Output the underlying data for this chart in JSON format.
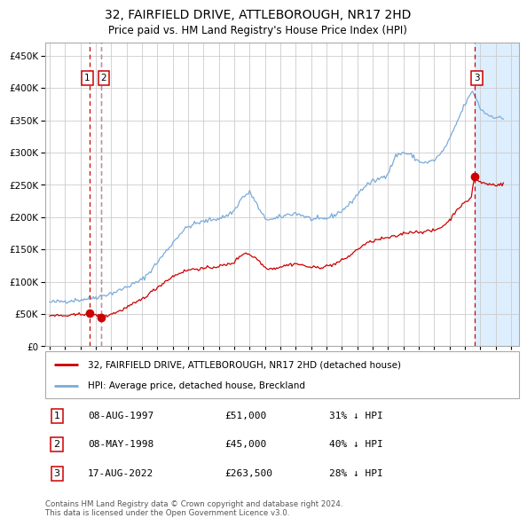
{
  "title": "32, FAIRFIELD DRIVE, ATTLEBOROUGH, NR17 2HD",
  "subtitle": "Price paid vs. HM Land Registry's House Price Index (HPI)",
  "legend_label_red": "32, FAIRFIELD DRIVE, ATTLEBOROUGH, NR17 2HD (detached house)",
  "legend_label_blue": "HPI: Average price, detached house, Breckland",
  "footer": "Contains HM Land Registry data © Crown copyright and database right 2024.\nThis data is licensed under the Open Government Licence v3.0.",
  "transactions": [
    {
      "num": "1",
      "date": "08-AUG-1997",
      "price": "£51,000",
      "pct": "31% ↓ HPI",
      "date_val": 1997.608,
      "price_val": 51000
    },
    {
      "num": "2",
      "date": "08-MAY-1998",
      "price": "£45,000",
      "pct": "40% ↓ HPI",
      "date_val": 1998.356,
      "price_val": 45000
    },
    {
      "num": "3",
      "date": "17-AUG-2022",
      "price": "£263,500",
      "pct": "28% ↓ HPI",
      "date_val": 2022.624,
      "price_val": 263500
    }
  ],
  "red_line_color": "#cc0000",
  "blue_line_color": "#7aabdb",
  "background_color": "#ffffff",
  "plot_bg_color": "#ffffff",
  "grid_color": "#cccccc",
  "highlight_color": "#ddeeff",
  "ylim": [
    0,
    470000
  ],
  "yticks": [
    0,
    50000,
    100000,
    150000,
    200000,
    250000,
    300000,
    350000,
    400000,
    450000
  ],
  "xlim_left": 1994.7,
  "xlim_right": 2025.5,
  "hpi_key_points": [
    [
      1995.0,
      68000
    ],
    [
      1995.5,
      69000
    ],
    [
      1996.0,
      70000
    ],
    [
      1996.5,
      71000
    ],
    [
      1997.0,
      72000
    ],
    [
      1997.5,
      74000
    ],
    [
      1998.0,
      76000
    ],
    [
      1998.5,
      79000
    ],
    [
      1999.0,
      82000
    ],
    [
      1999.5,
      86000
    ],
    [
      2000.0,
      92000
    ],
    [
      2000.5,
      97000
    ],
    [
      2001.0,
      103000
    ],
    [
      2001.5,
      115000
    ],
    [
      2002.0,
      130000
    ],
    [
      2002.5,
      145000
    ],
    [
      2003.0,
      160000
    ],
    [
      2003.5,
      175000
    ],
    [
      2004.0,
      185000
    ],
    [
      2004.5,
      190000
    ],
    [
      2005.0,
      193000
    ],
    [
      2005.5,
      196000
    ],
    [
      2006.0,
      198000
    ],
    [
      2006.5,
      202000
    ],
    [
      2007.0,
      210000
    ],
    [
      2007.5,
      230000
    ],
    [
      2008.0,
      238000
    ],
    [
      2008.3,
      228000
    ],
    [
      2008.7,
      208000
    ],
    [
      2009.0,
      198000
    ],
    [
      2009.5,
      196000
    ],
    [
      2010.0,
      200000
    ],
    [
      2010.5,
      204000
    ],
    [
      2011.0,
      206000
    ],
    [
      2011.5,
      202000
    ],
    [
      2012.0,
      197000
    ],
    [
      2012.5,
      196000
    ],
    [
      2013.0,
      198000
    ],
    [
      2013.5,
      203000
    ],
    [
      2014.0,
      210000
    ],
    [
      2014.5,
      220000
    ],
    [
      2015.0,
      235000
    ],
    [
      2015.5,
      248000
    ],
    [
      2016.0,
      255000
    ],
    [
      2016.5,
      260000
    ],
    [
      2017.0,
      268000
    ],
    [
      2017.5,
      295000
    ],
    [
      2018.0,
      300000
    ],
    [
      2018.5,
      296000
    ],
    [
      2019.0,
      286000
    ],
    [
      2019.5,
      284000
    ],
    [
      2020.0,
      288000
    ],
    [
      2020.5,
      300000
    ],
    [
      2021.0,
      320000
    ],
    [
      2021.5,
      348000
    ],
    [
      2022.0,
      375000
    ],
    [
      2022.5,
      395000
    ],
    [
      2022.65,
      388000
    ],
    [
      2023.0,
      368000
    ],
    [
      2023.5,
      358000
    ],
    [
      2024.0,
      355000
    ],
    [
      2024.5,
      352000
    ]
  ],
  "red_key_points": [
    [
      1995.0,
      48000
    ],
    [
      1995.5,
      47500
    ],
    [
      1996.0,
      47000
    ],
    [
      1996.5,
      48000
    ],
    [
      1997.0,
      49500
    ],
    [
      1997.608,
      51000
    ],
    [
      1997.8,
      50500
    ],
    [
      1998.0,
      49000
    ],
    [
      1998.356,
      45000
    ],
    [
      1998.6,
      46000
    ],
    [
      1999.0,
      50000
    ],
    [
      1999.5,
      54000
    ],
    [
      2000.0,
      60000
    ],
    [
      2000.5,
      66000
    ],
    [
      2001.0,
      73000
    ],
    [
      2001.5,
      82000
    ],
    [
      2002.0,
      91000
    ],
    [
      2002.5,
      100000
    ],
    [
      2003.0,
      108000
    ],
    [
      2003.5,
      114000
    ],
    [
      2004.0,
      118000
    ],
    [
      2004.5,
      120000
    ],
    [
      2005.0,
      120000
    ],
    [
      2005.5,
      122000
    ],
    [
      2006.0,
      124000
    ],
    [
      2006.5,
      126000
    ],
    [
      2007.0,
      130000
    ],
    [
      2007.3,
      138000
    ],
    [
      2007.7,
      145000
    ],
    [
      2008.0,
      142000
    ],
    [
      2008.5,
      135000
    ],
    [
      2009.0,
      122000
    ],
    [
      2009.5,
      120000
    ],
    [
      2010.0,
      123000
    ],
    [
      2010.5,
      126000
    ],
    [
      2011.0,
      128000
    ],
    [
      2011.5,
      125000
    ],
    [
      2012.0,
      122000
    ],
    [
      2012.5,
      122000
    ],
    [
      2013.0,
      124000
    ],
    [
      2013.5,
      127000
    ],
    [
      2014.0,
      133000
    ],
    [
      2014.5,
      140000
    ],
    [
      2015.0,
      150000
    ],
    [
      2015.5,
      158000
    ],
    [
      2016.0,
      163000
    ],
    [
      2016.5,
      166000
    ],
    [
      2017.0,
      168000
    ],
    [
      2017.5,
      170000
    ],
    [
      2018.0,
      175000
    ],
    [
      2018.5,
      177000
    ],
    [
      2019.0,
      177000
    ],
    [
      2019.5,
      178000
    ],
    [
      2020.0,
      179000
    ],
    [
      2020.5,
      185000
    ],
    [
      2021.0,
      195000
    ],
    [
      2021.5,
      213000
    ],
    [
      2022.0,
      222000
    ],
    [
      2022.4,
      230000
    ],
    [
      2022.624,
      263500
    ],
    [
      2022.8,
      257000
    ],
    [
      2023.0,
      254000
    ],
    [
      2023.5,
      251000
    ],
    [
      2024.0,
      250000
    ],
    [
      2024.5,
      251000
    ]
  ]
}
